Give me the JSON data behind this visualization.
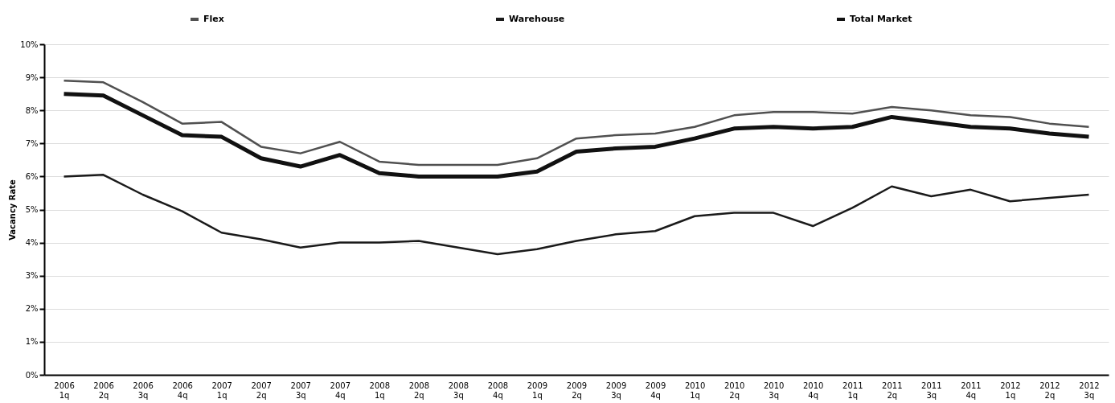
{
  "chart_data": {
    "type": "line",
    "ylabel": "Vacancy Rate",
    "categories": [
      "2006 1q",
      "2006 2q",
      "2006 3q",
      "2006 4q",
      "2007 1q",
      "2007 2q",
      "2007 3q",
      "2007 4q",
      "2008 1q",
      "2008 2q",
      "2008 3q",
      "2008 4q",
      "2009 1q",
      "2009 2q",
      "2009 3q",
      "2009 4q",
      "2010 1q",
      "2010 2q",
      "2010 3q",
      "2010 4q",
      "2011 1q",
      "2011 2q",
      "2011 3q",
      "2011 4q",
      "2012 1q",
      "2012 2q",
      "2012 3q"
    ],
    "series": [
      {
        "name": "Flex",
        "color": "#505050",
        "values": [
          8.9,
          8.85,
          8.25,
          7.6,
          7.65,
          6.9,
          6.7,
          7.05,
          6.45,
          6.35,
          6.35,
          6.35,
          6.55,
          7.15,
          7.25,
          7.3,
          7.5,
          7.85,
          7.95,
          7.95,
          7.9,
          8.1,
          8.0,
          7.85,
          7.8,
          7.6,
          7.5
        ]
      },
      {
        "name": "Warehouse",
        "color": "#1a1a1a",
        "values": [
          6.0,
          6.05,
          5.45,
          4.95,
          4.3,
          4.1,
          3.85,
          4.0,
          4.0,
          4.05,
          3.85,
          3.65,
          3.8,
          4.05,
          4.25,
          4.35,
          4.8,
          4.9,
          4.9,
          4.5,
          5.05,
          5.7,
          5.4,
          5.6,
          5.25,
          5.35,
          5.45
        ]
      },
      {
        "name": "Total Market",
        "color": "#111111",
        "values": [
          8.5,
          8.45,
          7.85,
          7.25,
          7.2,
          6.55,
          6.3,
          6.65,
          6.1,
          6.0,
          6.0,
          6.0,
          6.15,
          6.75,
          6.85,
          6.9,
          7.15,
          7.45,
          7.5,
          7.45,
          7.5,
          7.8,
          7.65,
          7.5,
          7.45,
          7.3,
          7.2
        ]
      }
    ],
    "ylim": [
      0,
      10
    ],
    "yticks": [
      {
        "value": 0,
        "label": "0%"
      },
      {
        "value": 1,
        "label": "1%"
      },
      {
        "value": 2,
        "label": "2%"
      },
      {
        "value": 3,
        "label": "3%"
      },
      {
        "value": 4,
        "label": "4%"
      },
      {
        "value": 5,
        "label": "5%"
      },
      {
        "value": 6,
        "label": "6%"
      },
      {
        "value": 7,
        "label": "7%"
      },
      {
        "value": 8,
        "label": "8%"
      },
      {
        "value": 9,
        "label": "9%"
      },
      {
        "value": 10,
        "label": "10%"
      }
    ],
    "grid": "y",
    "legend": "top",
    "marker": "none",
    "line_style": "solid"
  }
}
